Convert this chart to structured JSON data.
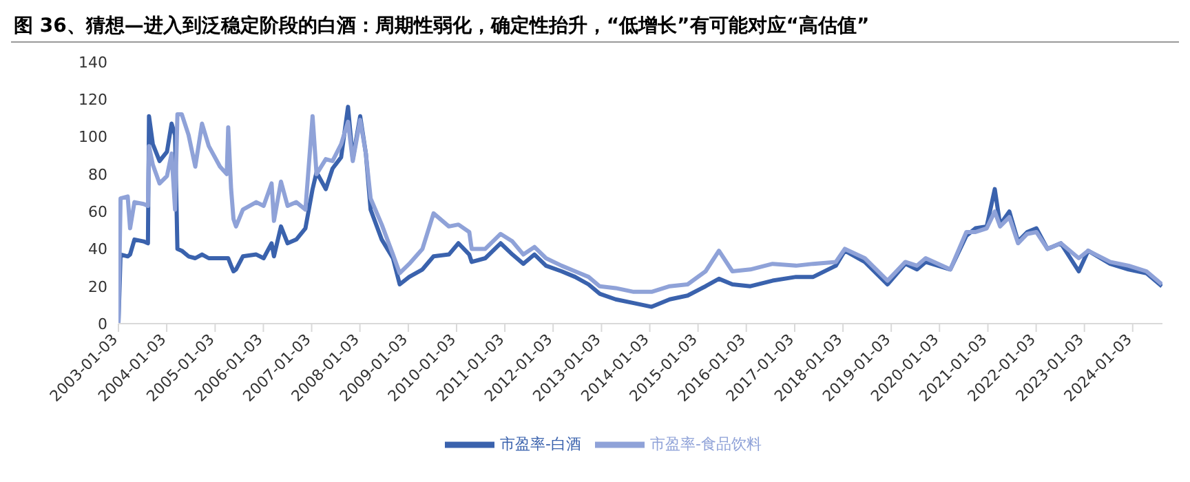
{
  "chart_data": {
    "type": "line",
    "title": "图 36、猜想—进入到泛稳定阶段的白酒：周期性弱化，确定性抬升，“低增长”有可能对应“高估值”",
    "x": [
      "2003-01-03",
      "2003-01-19",
      "2003-03-14",
      "2003-04-01",
      "2003-05-04",
      "2003-07-12",
      "2003-08-14",
      "2003-08-22",
      "2003-09-20",
      "2003-11-10",
      "2004-01-05",
      "2004-02-09",
      "2004-03-06",
      "2004-03-24",
      "2004-04-26",
      "2004-06-16",
      "2004-08-06",
      "2004-09-26",
      "2004-11-16",
      "2005-02-09",
      "2005-04-01",
      "2005-04-12",
      "2005-05-04",
      "2005-05-22",
      "2005-06-10",
      "2005-08-01",
      "2005-11-10",
      "2006-01-05",
      "2006-03-06",
      "2006-03-24",
      "2006-05-16",
      "2006-07-05",
      "2006-09-09",
      "2006-11-17",
      "2007-01-10",
      "2007-02-09",
      "2007-04-20",
      "2007-06-10",
      "2007-08-14",
      "2007-10-05",
      "2007-11-10",
      "2008-01-05",
      "2008-02-17",
      "2008-03-24",
      "2008-06-16",
      "2008-09-09",
      "2008-10-30",
      "2009-01-10",
      "2009-04-20",
      "2009-07-13",
      "2009-11-06",
      "2010-01-17",
      "2010-04-09",
      "2010-04-27",
      "2010-08-08",
      "2010-12-02",
      "2011-03-01",
      "2011-05-23",
      "2011-08-15",
      "2011-11-10",
      "2012-03-07",
      "2012-06-17",
      "2012-09-27",
      "2012-12-20",
      "2013-04-20",
      "2013-09-03",
      "2014-01-17",
      "2014-06-03",
      "2014-10-16",
      "2015-03-01",
      "2015-06-10",
      "2015-09-20",
      "2016-02-03",
      "2016-07-20",
      "2017-01-13",
      "2017-05-23",
      "2017-11-10",
      "2018-01-17",
      "2018-06-17",
      "2018-12-06",
      "2019-04-20",
      "2019-07-17",
      "2019-09-20",
      "2020-03-25",
      "2020-07-24",
      "2020-10-01",
      "2020-12-25",
      "2021-02-24",
      "2021-04-05",
      "2021-06-14",
      "2021-08-19",
      "2021-10-27",
      "2022-01-05",
      "2022-03-29",
      "2022-07-09",
      "2022-11-21",
      "2023-01-31",
      "2023-07-17",
      "2023-12-03",
      "2024-04-16",
      "2024-08-11"
    ],
    "series": [
      {
        "name": "市盈率-白酒",
        "color": "#3a62ad",
        "values": [
          0,
          37,
          36,
          37,
          45,
          44,
          43,
          111,
          96,
          87,
          92,
          107,
          101,
          40,
          39,
          36,
          35,
          37,
          35,
          35,
          35,
          35,
          31,
          28,
          29,
          36,
          37,
          35,
          43,
          36,
          52,
          43,
          45,
          51,
          72,
          81,
          72,
          83,
          89,
          116,
          88,
          111,
          91,
          61,
          45,
          35,
          21,
          25,
          29,
          36,
          37,
          43,
          37,
          33,
          35,
          43,
          37,
          32,
          37,
          31,
          28,
          25,
          21,
          16,
          13,
          11,
          9,
          13,
          15,
          20,
          24,
          21,
          20,
          23,
          25,
          25,
          31,
          39,
          33,
          21,
          32,
          29,
          33,
          29,
          47,
          51,
          52,
          72,
          53,
          60,
          44,
          49,
          51,
          40,
          43,
          28,
          39,
          32,
          29,
          27,
          20
        ]
      },
      {
        "name": "市盈率-食品饮料",
        "color": "#8fa2d8",
        "values": [
          0,
          67,
          68,
          51,
          65,
          64,
          63,
          95,
          85,
          75,
          79,
          91,
          61,
          112,
          112,
          101,
          84,
          107,
          95,
          84,
          80,
          105,
          72,
          56,
          52,
          61,
          65,
          63,
          75,
          55,
          76,
          63,
          65,
          61,
          111,
          80,
          88,
          87,
          96,
          108,
          87,
          109,
          91,
          67,
          53,
          37,
          27,
          32,
          40,
          59,
          52,
          53,
          49,
          40,
          40,
          48,
          44,
          37,
          41,
          35,
          31,
          28,
          25,
          20,
          19,
          17,
          17,
          20,
          21,
          28,
          39,
          28,
          29,
          32,
          31,
          32,
          33,
          40,
          35,
          23,
          33,
          31,
          35,
          29,
          49,
          49,
          51,
          60,
          52,
          57,
          43,
          48,
          49,
          40,
          43,
          35,
          39,
          33,
          31,
          28,
          21
        ]
      }
    ],
    "xlim": [
      "2003-01-03",
      "2024-08-15"
    ],
    "xticks": [
      "2003-01-03",
      "2004-01-03",
      "2005-01-03",
      "2006-01-03",
      "2007-01-03",
      "2008-01-03",
      "2009-01-03",
      "2010-01-03",
      "2011-01-03",
      "2012-01-03",
      "2013-01-03",
      "2014-01-03",
      "2015-01-03",
      "2016-01-03",
      "2017-01-03",
      "2018-01-03",
      "2019-01-03",
      "2020-01-03",
      "2021-01-03",
      "2022-01-03",
      "2023-01-03",
      "2024-01-03"
    ],
    "ylim": [
      0,
      140
    ],
    "yticks": [
      0,
      20,
      40,
      60,
      80,
      100,
      120,
      140
    ],
    "legend": "bottom",
    "grid": false,
    "marker": "none",
    "line_style": "solid"
  }
}
